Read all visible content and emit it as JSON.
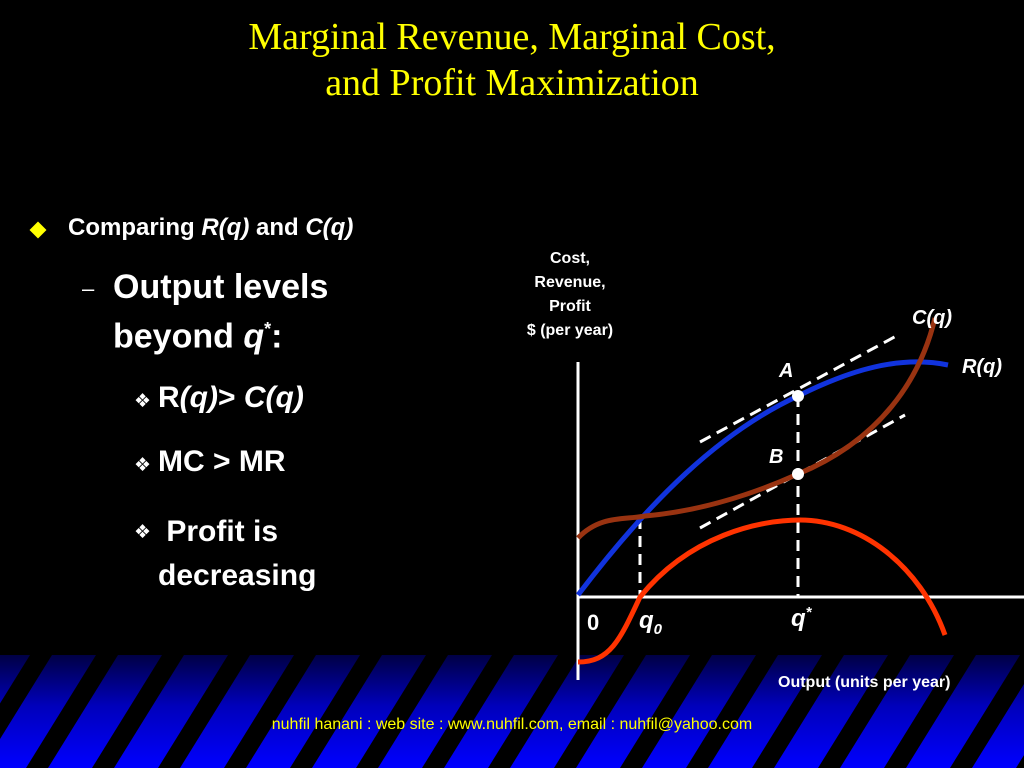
{
  "title": {
    "line1": "Marginal Revenue, Marginal Cost,",
    "line2": "and Profit Maximization"
  },
  "bullets": {
    "level1": {
      "t1": "Comparing ",
      "t2": "R(q)",
      "t3": " and ",
      "t4": "C(q)"
    },
    "level2": {
      "line1": "Output levels",
      "line2a": "beyond ",
      "q": "q",
      "sup": "*",
      "line2b": ":"
    },
    "level3": [
      {
        "a": "R",
        "b": "(q)",
        "c": "> ",
        "d": "C(q)"
      },
      {
        "a": "MC > MR"
      },
      {
        "a": " Profit is",
        "b": "decreasing"
      }
    ]
  },
  "chart": {
    "ylabel": [
      "Cost,",
      "Revenue,",
      "Profit",
      "$ (per year)"
    ],
    "xlabel": "Output (units per year)",
    "origin": "0",
    "q0": "q",
    "q0_sub": "0",
    "qstar": "q",
    "qstar_sup": "*",
    "point_A": "A",
    "point_B": "B",
    "curve_C": "C(q)",
    "curve_R": "R(q)"
  },
  "footer": "nuhfil hanani : web site : www.nuhfil.com, email : nuhfil@yahoo.com",
  "colors": {
    "title": "#ffff00",
    "revenue_curve": "#1133dd",
    "cost_curve": "#993311",
    "profit_curve": "#ff3300",
    "footer_band": "#0000ee"
  }
}
